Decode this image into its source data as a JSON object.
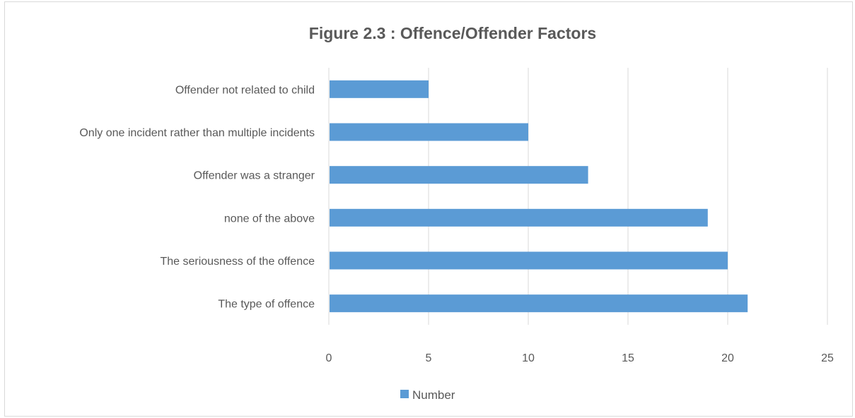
{
  "chart_data": {
    "type": "bar",
    "orientation": "horizontal",
    "title": "Figure 2.3 : Offence/Offender Factors",
    "categories": [
      "Offender not related to child",
      "Only one incident rather than multiple incidents",
      "Offender was a stranger",
      "none of the above",
      "The seriousness of the offence",
      "The type of offence"
    ],
    "series": [
      {
        "name": "Number",
        "values": [
          5,
          10,
          13,
          19,
          20,
          21
        ],
        "color": "#5b9bd5"
      }
    ],
    "xlim": [
      0,
      25
    ],
    "xticks": [
      "0",
      "5",
      "10",
      "15",
      "20",
      "25"
    ],
    "grid": true,
    "legend": "bottom"
  }
}
